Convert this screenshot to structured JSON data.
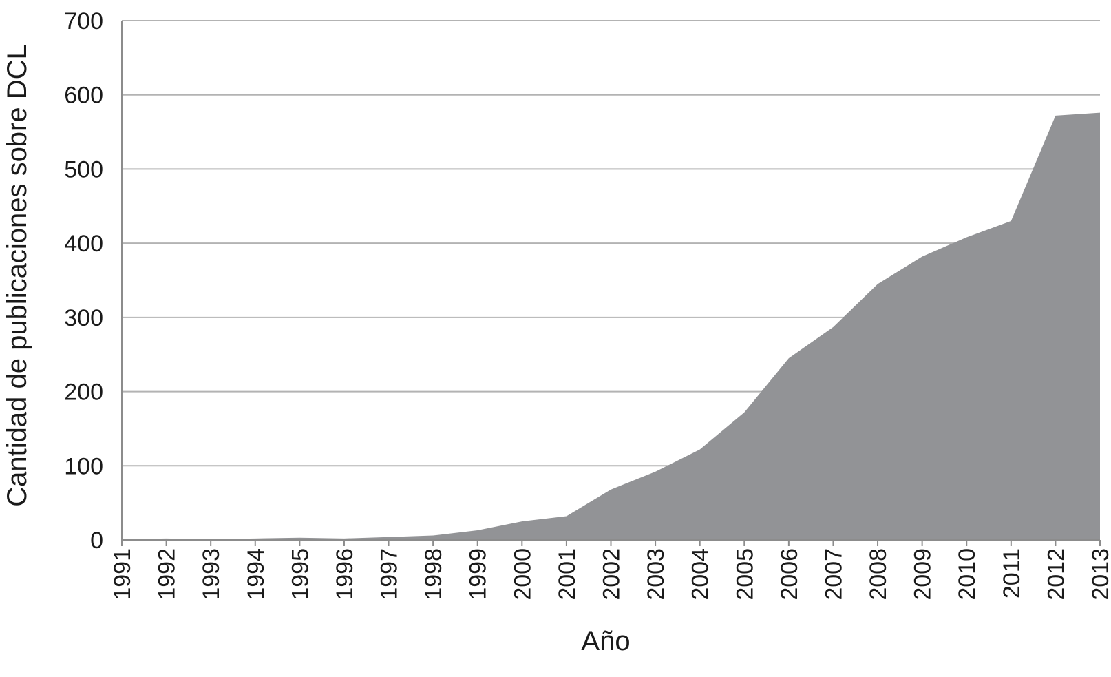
{
  "chart_data": {
    "type": "area",
    "title": "",
    "xlabel": "Año",
    "ylabel": "Cantidad de publicaciones sobre DCL",
    "x": [
      "1991",
      "1992",
      "1993",
      "1994",
      "1995",
      "1996",
      "1997",
      "1998",
      "1999",
      "2000",
      "2001",
      "2002",
      "2003",
      "2004",
      "2005",
      "2006",
      "2007",
      "2008",
      "2009",
      "2010",
      "2011",
      "2012",
      "2013"
    ],
    "series": [
      {
        "values": [
          1,
          2,
          1,
          2,
          3,
          2,
          4,
          6,
          13,
          25,
          32,
          68,
          92,
          122,
          172,
          245,
          287,
          345,
          382,
          408,
          430,
          572,
          576
        ]
      }
    ],
    "ylim": [
      0,
      700
    ],
    "yticks": [
      0,
      100,
      200,
      300,
      400,
      500,
      600,
      700
    ],
    "grid": true,
    "legend": "none",
    "colors": {
      "fill": "#929396",
      "grid": "#b3b3b3",
      "axis": "#8c8c8c",
      "text": "#1a1a1a"
    }
  }
}
